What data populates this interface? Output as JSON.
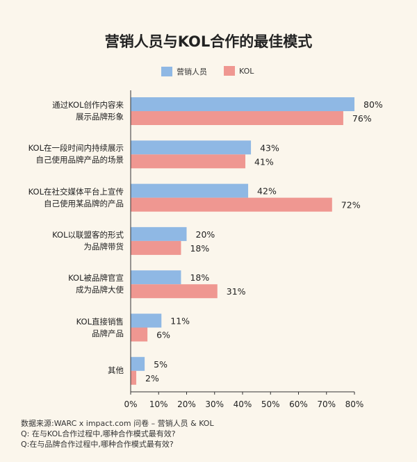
{
  "chart_data": {
    "type": "bar",
    "orientation": "horizontal",
    "title": "营销人员与KOL合作的最佳模式",
    "categories": [
      [
        "通过KOL创作内容来",
        "展示品牌形象"
      ],
      [
        "KOL在一段时间内持续展示",
        "自己使用品牌产品的场景"
      ],
      [
        "KOL在社交媒体平台上宣传",
        "自己使用某品牌的产品"
      ],
      [
        "KOL以联盟客的形式",
        "为品牌带货"
      ],
      [
        "KOL被品牌官宣",
        "成为品牌大使"
      ],
      [
        "KOL直接销售",
        "品牌产品"
      ],
      [
        "其他"
      ]
    ],
    "series": [
      {
        "name": "营销人员",
        "color": "#8fb8e4",
        "values": [
          80,
          43,
          42,
          20,
          18,
          11,
          5
        ]
      },
      {
        "name": "KOL",
        "color": "#ef9791",
        "values": [
          76,
          41,
          72,
          18,
          31,
          6,
          2
        ]
      }
    ],
    "xlim": [
      0,
      80
    ],
    "xticks": [
      "0%",
      "10%",
      "20%",
      "30%",
      "40%",
      "50%",
      "60%",
      "70%",
      "80%"
    ],
    "value_suffix": "%",
    "legend_position": "top-left",
    "grid": false
  },
  "footer": {
    "source": "数据来源:WARC x impact.com 问卷 – 营销人员 & KOL",
    "q1": "Q: 在与KOL合作过程中,哪种合作模式最有效?",
    "q2": "Q:在与品牌合作过程中,哪种合作模式最有效?"
  }
}
